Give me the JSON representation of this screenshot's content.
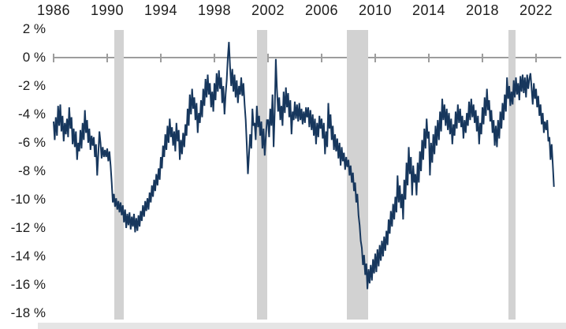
{
  "chart_data": {
    "type": "line",
    "title": "",
    "unit": "%",
    "x_start_year": 1986,
    "points_per_year": 12,
    "x_tick_years": [
      1986,
      1990,
      1994,
      1998,
      2002,
      2006,
      2010,
      2014,
      2018,
      2022
    ],
    "x_tick_labels": [
      "1986",
      "1990",
      "1994",
      "1998",
      "2002",
      "2006",
      "2010",
      "2014",
      "2018",
      "2022"
    ],
    "y_tick_labels": [
      "2 %",
      "0 %",
      "-2 %",
      "-4 %",
      "-6 %",
      "-8 %",
      "-10 %",
      "-12 %",
      "-14 %",
      "-16 %",
      "-18 %"
    ],
    "y_tick_values": [
      2,
      0,
      -2,
      -4,
      -6,
      -8,
      -10,
      -12,
      -14,
      -16,
      -18
    ],
    "ylim": [
      -18.5,
      2
    ],
    "grid": "zero-line-only",
    "legend": "none",
    "line_color": "#17375d",
    "band_color": "#d2d2d2",
    "axis_color": "#9d9d9d",
    "recession_bands_years": [
      [
        1990.5,
        1991.25
      ],
      [
        2001.15,
        2001.95
      ],
      [
        2007.9,
        2009.5
      ],
      [
        2019.95,
        2020.45
      ]
    ],
    "values": [
      -4.5,
      -5.8,
      -4.2,
      -5.5,
      -3.4,
      -4.8,
      -3.3,
      -5.2,
      -4.1,
      -5.9,
      -4.6,
      -5.4,
      -4.3,
      -5.6,
      -3.5,
      -5.0,
      -4.2,
      -6.1,
      -5.0,
      -6.3,
      -5.2,
      -7.2,
      -6.0,
      -6.6,
      -5.1,
      -6.4,
      -4.6,
      -5.8,
      -3.7,
      -5.3,
      -4.4,
      -6.0,
      -5.0,
      -6.5,
      -5.5,
      -6.2,
      -5.6,
      -7.0,
      -6.1,
      -8.3,
      -6.8,
      -5.2,
      -6.0,
      -7.1,
      -6.3,
      -7.0,
      -6.5,
      -7.0,
      -6.4,
      -7.3,
      -6.6,
      -7.6,
      -8.8,
      -10.2,
      -9.6,
      -10.5,
      -9.9,
      -10.7,
      -10.1,
      -10.9,
      -10.2,
      -11.1,
      -10.4,
      -11.6,
      -10.7,
      -12.0,
      -11.0,
      -11.8,
      -10.9,
      -12.1,
      -11.2,
      -11.9,
      -11.0,
      -12.3,
      -11.3,
      -12.2,
      -11.1,
      -11.9,
      -10.8,
      -11.5,
      -10.4,
      -11.2,
      -10.1,
      -10.8,
      -9.9,
      -10.7,
      -9.5,
      -10.2,
      -9.0,
      -9.8,
      -8.6,
      -9.4,
      -8.2,
      -9.0,
      -7.8,
      -8.6,
      -7.0,
      -7.8,
      -6.2,
      -7.0,
      -5.4,
      -6.5,
      -4.8,
      -6.0,
      -4.3,
      -5.6,
      -4.9,
      -6.2,
      -5.2,
      -6.6,
      -4.6,
      -5.9,
      -5.1,
      -7.2,
      -5.8,
      -6.8,
      -5.3,
      -6.3,
      -4.7,
      -5.5,
      -3.6,
      -4.8,
      -2.6,
      -4.0,
      -2.2,
      -3.6,
      -2.8,
      -4.4,
      -3.2,
      -5.3,
      -3.9,
      -4.6,
      -3.0,
      -4.2,
      -2.2,
      -3.4,
      -1.5,
      -2.8,
      -1.2,
      -2.6,
      -1.8,
      -3.5,
      -2.4,
      -3.8,
      -1.8,
      -3.0,
      -1.1,
      -2.4,
      -0.9,
      -2.2,
      -1.4,
      -3.2,
      -2.0,
      -4.0,
      -2.6,
      -1.6,
      0.0,
      1.1,
      -0.6,
      -2.0,
      -0.8,
      -2.4,
      -1.2,
      -2.8,
      -1.6,
      -3.2,
      -2.0,
      -2.6,
      -1.4,
      -2.7,
      -1.8,
      -3.3,
      -4.4,
      -6.2,
      -8.2,
      -6.8,
      -5.4,
      -6.4,
      -3.6,
      -4.8,
      -4.6,
      -5.8,
      -3.4,
      -4.9,
      -4.1,
      -5.5,
      -4.5,
      -6.4,
      -5.0,
      -6.9,
      -5.6,
      -4.4,
      -4.4,
      -5.6,
      -3.6,
      -4.8,
      -2.6,
      -6.3,
      -3.8,
      -0.1,
      -2.2,
      -3.8,
      -2.8,
      -4.4,
      -3.4,
      -4.8,
      -2.4,
      -3.9,
      -2.1,
      -3.5,
      -2.5,
      -4.2,
      -3.0,
      -5.4,
      -3.8,
      -4.4,
      -3.1,
      -4.3,
      -3.3,
      -4.5,
      -3.2,
      -4.4,
      -3.6,
      -4.7,
      -3.8,
      -4.6,
      -3.5,
      -4.2,
      -3.5,
      -4.9,
      -3.7,
      -5.1,
      -4.0,
      -5.5,
      -4.3,
      -6.1,
      -4.6,
      -5.6,
      -4.1,
      -5.0,
      -4.3,
      -5.7,
      -4.6,
      -6.8,
      -5.2,
      -6.3,
      -3.2,
      -5.0,
      -4.0,
      -5.8,
      -4.8,
      -6.5,
      -5.4,
      -6.6,
      -5.7,
      -7.1,
      -6.0,
      -7.6,
      -6.3,
      -7.3,
      -6.7,
      -7.9,
      -7.0,
      -7.7,
      -7.2,
      -8.3,
      -7.6,
      -8.8,
      -8.1,
      -9.4,
      -8.8,
      -10.2,
      -9.6,
      -11.1,
      -11.8,
      -12.9,
      -13.4,
      -14.6,
      -13.9,
      -15.3,
      -14.5,
      -16.3,
      -14.9,
      -15.9,
      -14.6,
      -15.7,
      -14.2,
      -15.2,
      -13.8,
      -15.1,
      -13.5,
      -14.7,
      -13.2,
      -14.3,
      -12.9,
      -14.0,
      -12.6,
      -13.6,
      -12.2,
      -13.2,
      -11.4,
      -12.4,
      -10.8,
      -11.9,
      -10.3,
      -11.4,
      -9.8,
      -10.9,
      -8.3,
      -10.2,
      -9.0,
      -10.6,
      -9.6,
      -11.4,
      -8.6,
      -10.0,
      -7.4,
      -9.0,
      -6.3,
      -8.2,
      -7.0,
      -9.7,
      -7.6,
      -8.8,
      -8.2,
      -9.7,
      -7.4,
      -8.8,
      -6.6,
      -8.0,
      -5.8,
      -7.2,
      -5.0,
      -6.4,
      -4.3,
      -5.7,
      -5.2,
      -8.3,
      -6.0,
      -7.4,
      -5.4,
      -6.8,
      -4.8,
      -6.2,
      -4.4,
      -5.8,
      -3.8,
      -5.2,
      -2.9,
      -4.4,
      -3.3,
      -4.8,
      -3.6,
      -5.1,
      -3.9,
      -5.4,
      -4.3,
      -6.1,
      -4.7,
      -5.5,
      -3.8,
      -5.0,
      -3.3,
      -4.6,
      -3.6,
      -4.9,
      -4.1,
      -5.7,
      -4.4,
      -5.3,
      -3.9,
      -4.8,
      -3.1,
      -4.4,
      -2.9,
      -4.2,
      -3.3,
      -4.6,
      -3.7,
      -5.2,
      -4.1,
      -6.1,
      -4.6,
      -5.4,
      -3.5,
      -4.7,
      -2.8,
      -4.1,
      -2.2,
      -3.7,
      -3.0,
      -4.5,
      -3.7,
      -5.3,
      -4.4,
      -6.2,
      -4.8,
      -6.3,
      -4.4,
      -5.7,
      -3.8,
      -5.0,
      -3.2,
      -4.4,
      -2.6,
      -3.8,
      -1.4,
      -2.9,
      -2.0,
      -3.4,
      -2.4,
      -3.3,
      -1.6,
      -2.8,
      -1.4,
      -2.6,
      -1.8,
      -3.0,
      -1.3,
      -2.4,
      -1.2,
      -2.5,
      -1.4,
      -2.8,
      -1.2,
      -2.2,
      -1.5,
      -1.1,
      -2.1,
      -3.3,
      -1.8,
      -2.9,
      -2.2,
      -3.5,
      -2.7,
      -4.1,
      -3.3,
      -4.7,
      -3.9,
      -5.3,
      -4.5,
      -5.1,
      -4.4,
      -5.9,
      -5.6,
      -7.2,
      -6.1,
      -7.6,
      -9.1
    ]
  }
}
